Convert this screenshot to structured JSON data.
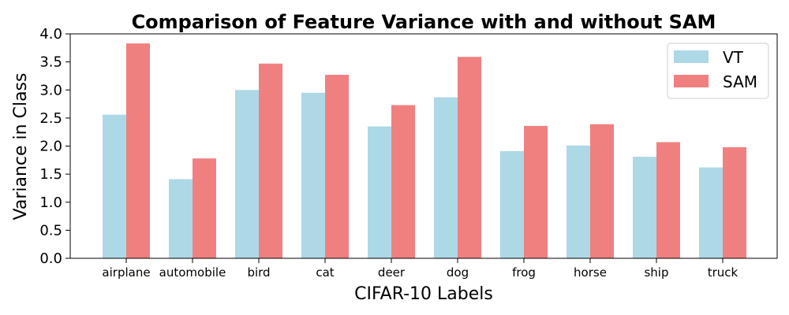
{
  "chart_data": {
    "type": "bar",
    "title": "Comparison of Feature Variance with and without SAM",
    "xlabel": "CIFAR-10 Labels",
    "ylabel": "Variance in Class",
    "categories": [
      "airplane",
      "automobile",
      "bird",
      "cat",
      "deer",
      "dog",
      "frog",
      "horse",
      "ship",
      "truck"
    ],
    "series": [
      {
        "name": "VT",
        "color": "#add8e6",
        "values": [
          2.56,
          1.41,
          3.0,
          2.95,
          2.35,
          2.87,
          1.91,
          2.01,
          1.81,
          1.62
        ]
      },
      {
        "name": "SAM",
        "color": "#f08080",
        "values": [
          3.83,
          1.78,
          3.47,
          3.27,
          2.73,
          3.59,
          2.36,
          2.39,
          2.07,
          1.98
        ]
      }
    ],
    "ylim": [
      0,
      4.0
    ],
    "yticks": [
      "0.0",
      "0.5",
      "1.0",
      "1.5",
      "2.0",
      "2.5",
      "3.0",
      "3.5",
      "4.0"
    ],
    "grid": false,
    "legend": "top-right"
  }
}
